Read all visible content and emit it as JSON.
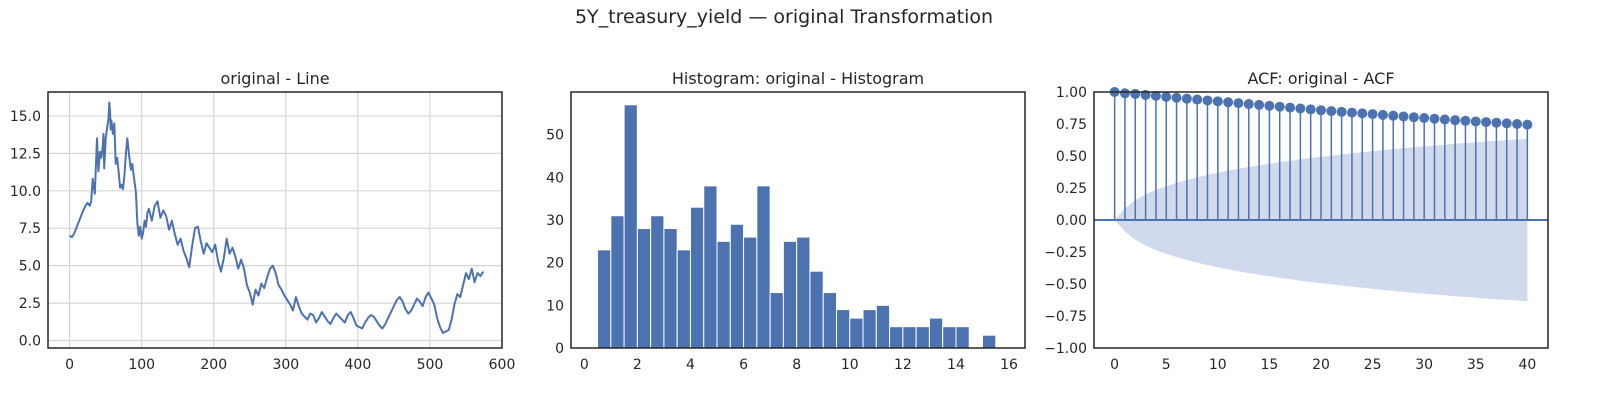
{
  "figure": {
    "suptitle": "5Y_treasury_yield — original Transformation",
    "colors": {
      "line": "#4c72b0",
      "bar": "#4c72b0",
      "band": "#c6d1e8",
      "grid": "#d6d6d6",
      "spine": "#262626"
    }
  },
  "chart_data": [
    {
      "type": "line",
      "title": "original - Line",
      "xlabel": "",
      "ylabel": "",
      "xlim": [
        -30,
        600
      ],
      "ylim": [
        -0.5,
        16.6
      ],
      "grid": true,
      "xticks": [
        0,
        100,
        200,
        300,
        400,
        500,
        600
      ],
      "yticks": [
        0.0,
        2.5,
        5.0,
        7.5,
        10.0,
        12.5,
        15.0
      ],
      "xtick_labels": [
        "0",
        "100",
        "200",
        "300",
        "400",
        "500",
        "600"
      ],
      "ytick_labels": [
        "0.0",
        "2.5",
        "5.0",
        "7.5",
        "10.0",
        "12.5",
        "15.0"
      ],
      "series": [
        {
          "x": [
            0,
            3,
            6,
            10,
            15,
            18,
            22,
            25,
            28,
            30,
            32,
            35,
            38,
            40,
            42,
            44,
            46,
            47,
            48,
            50,
            52,
            54,
            55,
            56,
            57,
            58,
            60,
            62,
            64,
            66,
            68,
            70,
            72,
            74,
            76,
            78,
            80,
            83,
            85,
            87,
            90,
            92,
            94,
            96,
            98,
            100,
            102,
            104,
            106,
            108,
            110,
            114,
            118,
            122,
            126,
            130,
            134,
            138,
            142,
            146,
            150,
            154,
            158,
            162,
            166,
            170,
            174,
            178,
            182,
            186,
            190,
            194,
            198,
            202,
            206,
            210,
            214,
            218,
            222,
            226,
            230,
            234,
            238,
            242,
            246,
            250,
            254,
            258,
            262,
            266,
            270,
            274,
            278,
            282,
            286,
            290,
            294,
            298,
            302,
            306,
            310,
            314,
            318,
            322,
            326,
            330,
            334,
            338,
            342,
            346,
            350,
            354,
            358,
            362,
            366,
            370,
            374,
            378,
            382,
            386,
            390,
            394,
            398,
            402,
            406,
            410,
            414,
            418,
            422,
            426,
            430,
            434,
            438,
            442,
            446,
            450,
            454,
            458,
            462,
            466,
            470,
            474,
            478,
            482,
            486,
            490,
            494,
            498,
            502,
            506,
            510,
            514,
            518,
            522,
            526,
            530,
            534,
            538,
            542,
            546,
            550,
            554,
            558,
            562,
            566,
            570,
            574
          ],
          "y": [
            7.0,
            6.9,
            7.1,
            7.6,
            8.2,
            8.6,
            9.0,
            9.2,
            9.0,
            9.3,
            10.8,
            9.8,
            13.5,
            11.3,
            12.6,
            12.2,
            13.0,
            13.8,
            11.5,
            13.5,
            14.2,
            14.8,
            15.9,
            15.3,
            14.1,
            14.7,
            13.8,
            14.5,
            11.8,
            12.2,
            11.3,
            10.2,
            10.4,
            10.1,
            11.0,
            12.4,
            13.5,
            12.2,
            11.4,
            11.8,
            10.6,
            9.9,
            7.8,
            7.0,
            7.6,
            6.8,
            7.2,
            8.0,
            7.6,
            8.5,
            8.8,
            8.0,
            9.0,
            9.3,
            8.2,
            8.7,
            8.3,
            7.4,
            8.0,
            7.1,
            6.4,
            6.8,
            6.0,
            5.5,
            4.9,
            6.3,
            7.5,
            7.6,
            6.6,
            5.8,
            6.5,
            6.2,
            5.9,
            6.4,
            5.3,
            4.6,
            5.5,
            6.8,
            5.8,
            6.2,
            5.6,
            4.8,
            5.4,
            4.8,
            3.7,
            3.2,
            2.4,
            3.4,
            3.0,
            3.8,
            3.5,
            4.2,
            4.8,
            5.0,
            4.5,
            3.7,
            3.4,
            3.0,
            2.7,
            2.4,
            2.0,
            2.9,
            2.3,
            1.8,
            1.6,
            1.4,
            1.8,
            1.7,
            1.2,
            1.5,
            1.9,
            1.6,
            1.3,
            1.1,
            1.5,
            1.8,
            1.6,
            1.4,
            1.2,
            1.7,
            1.9,
            1.5,
            1.0,
            0.9,
            0.8,
            1.2,
            1.5,
            1.7,
            1.6,
            1.3,
            1.0,
            0.8,
            1.1,
            1.5,
            1.9,
            2.3,
            2.7,
            2.9,
            2.6,
            2.1,
            1.8,
            2.0,
            2.4,
            2.8,
            2.6,
            2.3,
            2.9,
            3.2,
            2.8,
            2.4,
            1.5,
            0.9,
            0.5,
            0.6,
            0.7,
            1.4,
            2.4,
            3.1,
            2.9,
            3.7,
            4.5,
            4.1,
            4.8,
            3.9,
            4.5,
            4.3,
            4.6
          ]
        }
      ]
    },
    {
      "type": "bar",
      "title": "Histogram: original - Histogram",
      "xlabel": "",
      "ylabel": "",
      "xlim": [
        -0.5,
        16.6
      ],
      "ylim": [
        0,
        60
      ],
      "grid": false,
      "xticks": [
        0,
        2,
        4,
        6,
        8,
        10,
        12,
        14,
        16
      ],
      "yticks": [
        0,
        10,
        20,
        30,
        40,
        50
      ],
      "xtick_labels": [
        "0",
        "2",
        "4",
        "6",
        "8",
        "10",
        "12",
        "14",
        "16"
      ],
      "ytick_labels": [
        "0",
        "10",
        "20",
        "30",
        "40",
        "50"
      ],
      "bin_start": 0.5,
      "bin_width": 0.5,
      "values": [
        23,
        31,
        57,
        28,
        31,
        28,
        23,
        33,
        38,
        25,
        29,
        26,
        38,
        13,
        25,
        26,
        18,
        13,
        9,
        7,
        9,
        10,
        5,
        5,
        5,
        7,
        5,
        5,
        0,
        3
      ]
    },
    {
      "type": "line",
      "title": "ACF: original - ACF",
      "xlabel": "",
      "ylabel": "",
      "xlim": [
        -2,
        42
      ],
      "ylim": [
        -1.0,
        1.0
      ],
      "grid": false,
      "xticks": [
        0,
        5,
        10,
        15,
        20,
        25,
        30,
        35,
        40
      ],
      "yticks": [
        -1.0,
        -0.75,
        -0.5,
        -0.25,
        0.0,
        0.25,
        0.5,
        0.75,
        1.0
      ],
      "xtick_labels": [
        "0",
        "5",
        "10",
        "15",
        "20",
        "25",
        "30",
        "35",
        "40"
      ],
      "ytick_labels": [
        "−1.00",
        "−0.75",
        "−0.50",
        "−0.25",
        "0.00",
        "0.25",
        "0.50",
        "0.75",
        "1.00"
      ],
      "acf": [
        1.0,
        0.99,
        0.985,
        0.977,
        0.97,
        0.962,
        0.955,
        0.948,
        0.941,
        0.934,
        0.927,
        0.92,
        0.913,
        0.906,
        0.899,
        0.892,
        0.885,
        0.878,
        0.871,
        0.864,
        0.857,
        0.851,
        0.845,
        0.839,
        0.833,
        0.827,
        0.821,
        0.815,
        0.809,
        0.803,
        0.797,
        0.791,
        0.785,
        0.78,
        0.775,
        0.77,
        0.765,
        0.76,
        0.755,
        0.75,
        0.745
      ],
      "conf_band": [
        0,
        0.09,
        0.155,
        0.2,
        0.235,
        0.265,
        0.29,
        0.313,
        0.333,
        0.352,
        0.37,
        0.386,
        0.401,
        0.415,
        0.428,
        0.44,
        0.452,
        0.463,
        0.474,
        0.484,
        0.494,
        0.503,
        0.512,
        0.521,
        0.53,
        0.538,
        0.546,
        0.554,
        0.561,
        0.568,
        0.575,
        0.582,
        0.588,
        0.595,
        0.601,
        0.607,
        0.613,
        0.619,
        0.624,
        0.629,
        0.634
      ]
    }
  ]
}
